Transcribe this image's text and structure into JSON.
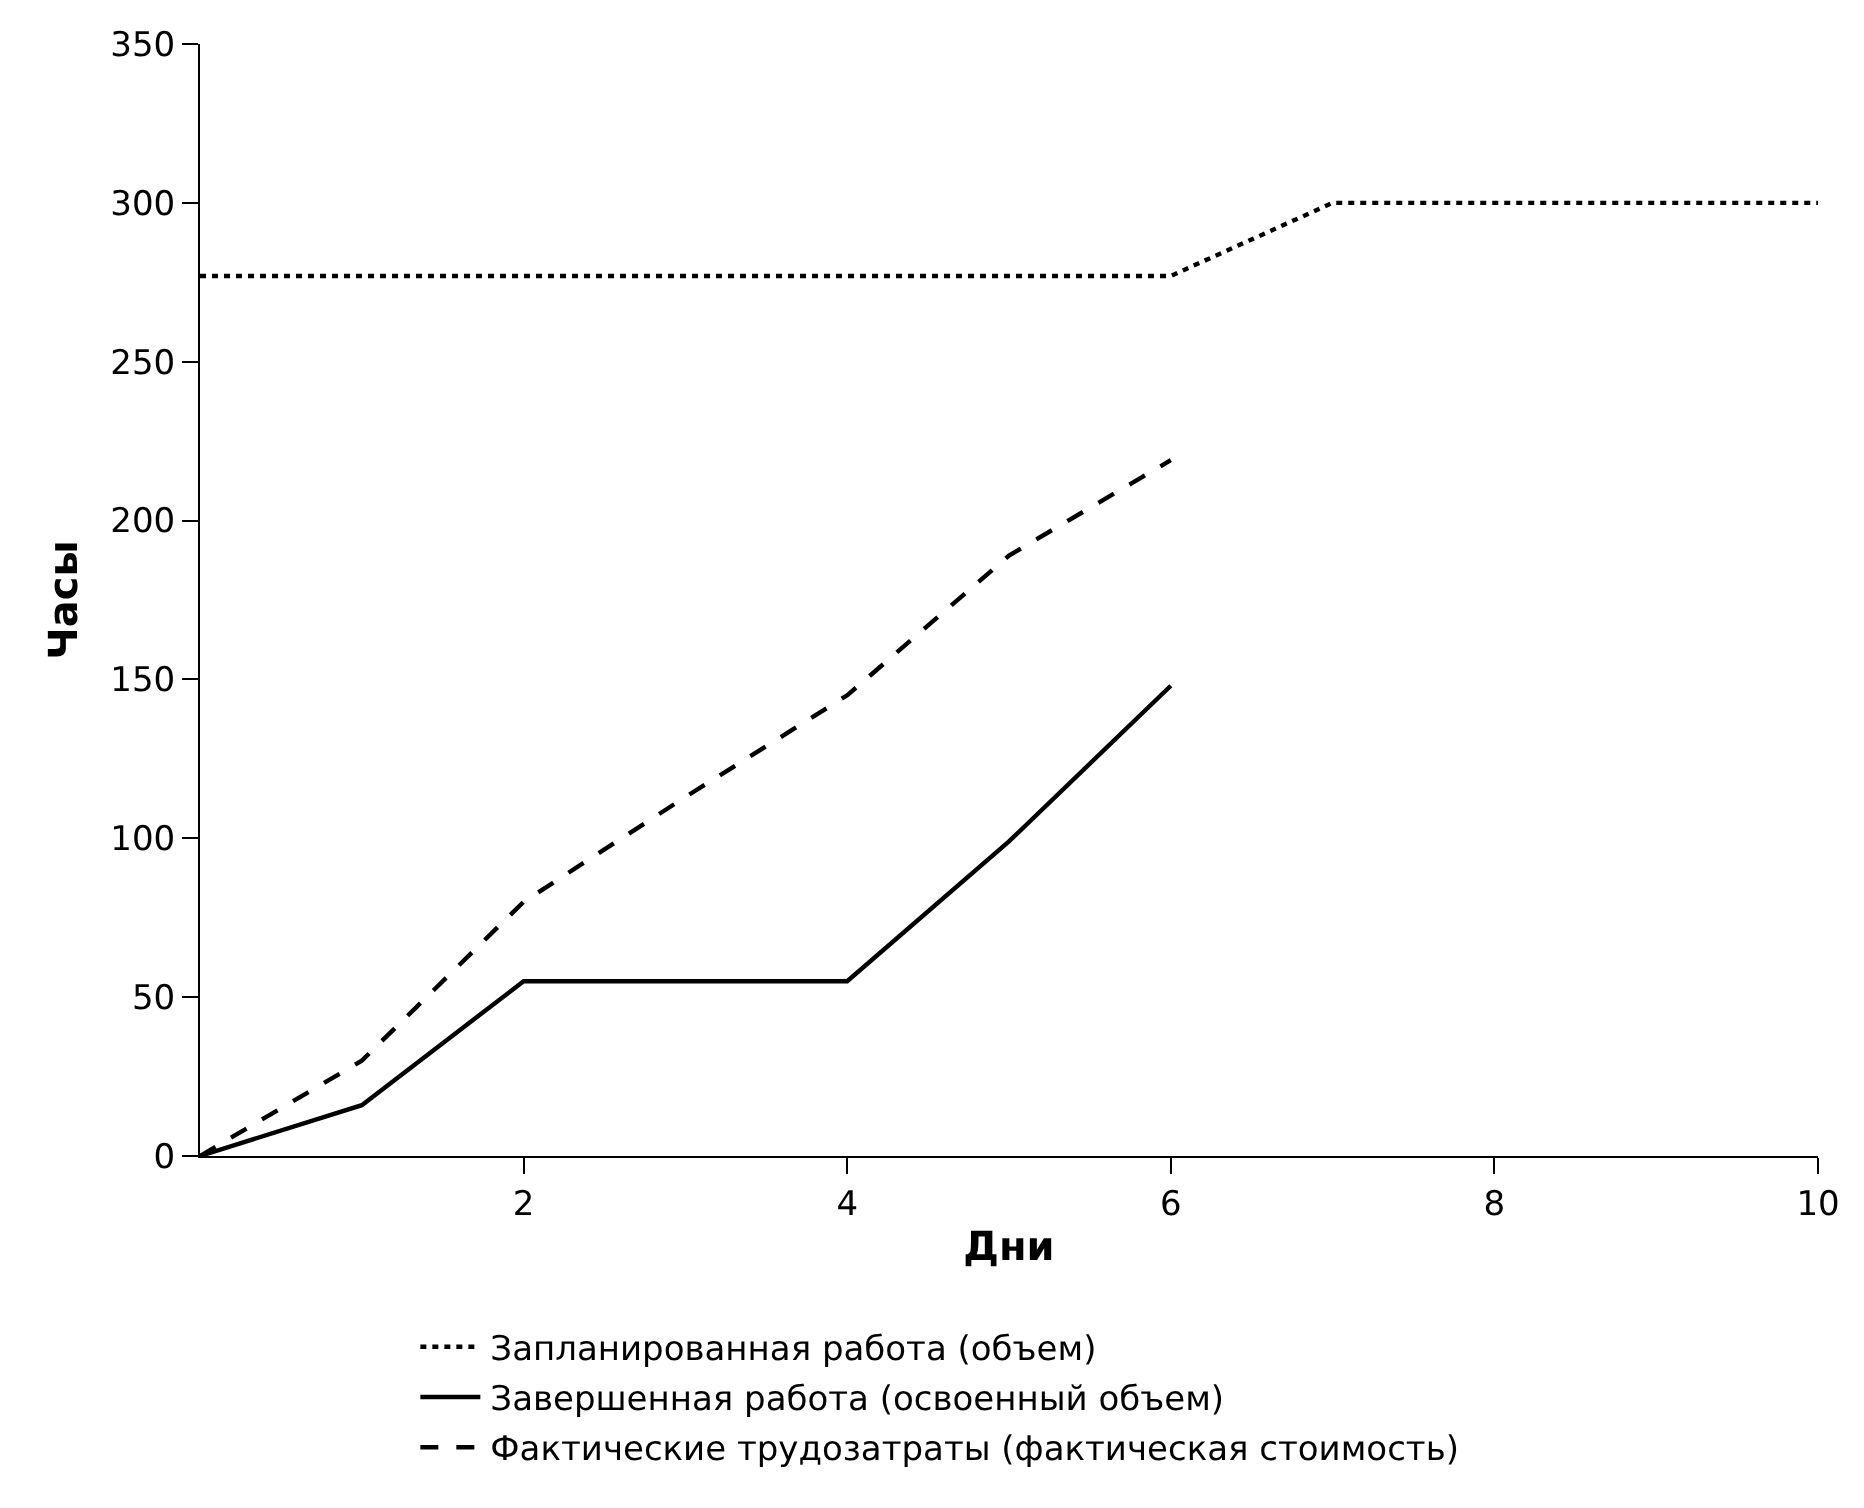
{
  "chart_data": {
    "type": "line",
    "xlabel": "Дни",
    "ylabel": "Часы",
    "xlim": [
      0,
      10
    ],
    "xticks": [
      2,
      4,
      6,
      8,
      10
    ],
    "ylim": [
      0,
      350
    ],
    "yticks": [
      0,
      50,
      100,
      150,
      200,
      250,
      300,
      350
    ],
    "legend": "bottom",
    "marker": "none",
    "series": [
      {
        "name": "Запланированная работа (объем)",
        "color": "#000000",
        "line_style": "dotted",
        "x": [
          0,
          6,
          7,
          10
        ],
        "values": [
          277,
          277,
          300,
          300
        ]
      },
      {
        "name": "Завершенная работа (освоенный объем)",
        "color": "#000000",
        "line_style": "solid",
        "x": [
          0,
          1,
          2,
          3,
          4,
          5,
          6
        ],
        "values": [
          0,
          16,
          55,
          55,
          55,
          99,
          148
        ]
      },
      {
        "name": "Фактические трудозатраты (фактическая стоимость)",
        "color": "#000000",
        "line_style": "dashed",
        "x": [
          0,
          1,
          2,
          3,
          4,
          5,
          6
        ],
        "values": [
          0,
          30,
          80,
          113,
          145,
          189,
          219
        ]
      }
    ]
  }
}
